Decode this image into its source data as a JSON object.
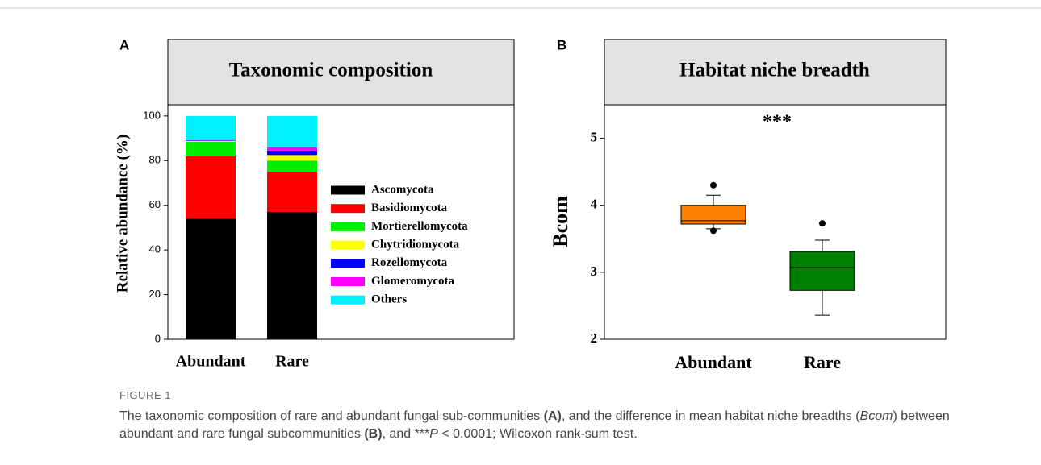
{
  "chart_data": [
    {
      "type": "stacked_bar",
      "panel": "A",
      "title": "Taxonomic composition",
      "ylabel": "Relative abundance (%)",
      "categories": [
        "Abundant",
        "Rare"
      ],
      "series": [
        {
          "name": "Ascomycota",
          "color": "#000000",
          "values": [
            54,
            57
          ]
        },
        {
          "name": "Basidiomycota",
          "color": "#ff0000",
          "values": [
            28,
            18
          ]
        },
        {
          "name": "Mortierellomycota",
          "color": "#00ee00",
          "values": [
            6.5,
            5
          ]
        },
        {
          "name": "Chytridiomycota",
          "color": "#ffff00",
          "values": [
            0.3,
            2.5
          ]
        },
        {
          "name": "Rozellomycota",
          "color": "#0000ff",
          "values": [
            0.2,
            2
          ]
        },
        {
          "name": "Glomeromycota",
          "color": "#ff00ff",
          "values": [
            0.2,
            1.5
          ]
        },
        {
          "name": "Others",
          "color": "#00f0ff",
          "values": [
            10.8,
            14
          ]
        }
      ],
      "ylim": [
        0,
        105
      ],
      "yticks": [
        0,
        20,
        40,
        60,
        80,
        100
      ]
    },
    {
      "type": "box",
      "panel": "B",
      "title": "Habitat niche breadth",
      "ylabel": "Bcom",
      "annotation": "***",
      "categories": [
        "Abundant",
        "Rare"
      ],
      "min": [
        3.65,
        2.36
      ],
      "q1": [
        3.72,
        2.73
      ],
      "median": [
        3.77,
        3.07
      ],
      "q3": [
        4.0,
        3.31
      ],
      "max": [
        4.15,
        3.48
      ],
      "outliers": [
        [
          4.3,
          3.62
        ],
        [
          3.73
        ]
      ],
      "colors": [
        "#ff8000",
        "#008000"
      ],
      "ylim": [
        2,
        5.5
      ],
      "yticks": [
        2,
        3,
        4,
        5
      ]
    }
  ],
  "caption": {
    "label": "FIGURE 1",
    "parts": [
      "The taxonomic composition of rare and abundant fungal sub-communities ",
      "(A)",
      ", and the difference in mean habitat niche breadths (",
      "Bcom",
      ") between abundant and rare fungal subcommunities ",
      "(B)",
      ", and ***",
      "P",
      " < 0.0001; Wilcoxon rank-sum test."
    ]
  }
}
